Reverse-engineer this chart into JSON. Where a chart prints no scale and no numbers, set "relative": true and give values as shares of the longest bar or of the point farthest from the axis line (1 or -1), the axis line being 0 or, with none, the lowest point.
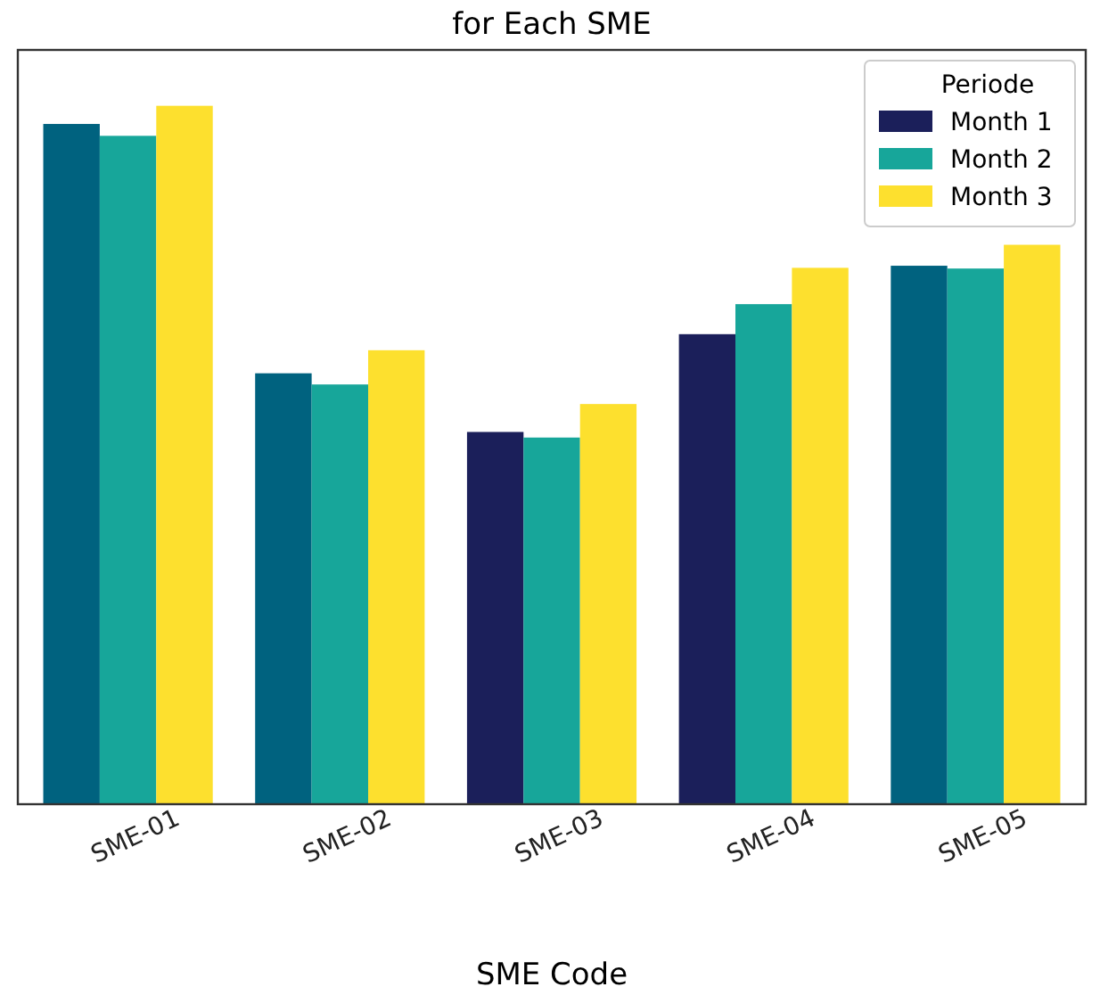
{
  "chart_data": {
    "type": "bar",
    "title": "for Each SME",
    "xlabel": "SME Code",
    "legend_title": "Periode",
    "legend": "top right",
    "relative": true,
    "categories": [
      "SME-01",
      "SME-02",
      "SME-03",
      "SME-04",
      "SME-05"
    ],
    "series": [
      {
        "name": "Month 1",
        "color": "#1b1f5a",
        "colors": [
          "#00627f",
          "#00627f",
          "#1b1f5a",
          "#1b1f5a",
          "#00627f"
        ],
        "values": [
          0.974,
          0.617,
          0.533,
          0.673,
          0.771
        ]
      },
      {
        "name": "Month 2",
        "color": "#17a69a",
        "values": [
          0.957,
          0.601,
          0.525,
          0.716,
          0.767
        ]
      },
      {
        "name": "Month 3",
        "color": "#fde02e",
        "values": [
          1,
          0.65,
          0.573,
          0.768,
          0.801
        ]
      }
    ]
  }
}
